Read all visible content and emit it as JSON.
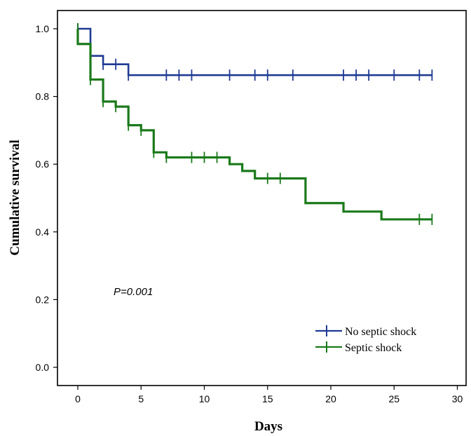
{
  "chart_data": {
    "type": "line",
    "step": true,
    "title": "",
    "xlabel": "Days",
    "ylabel": "Cumulative survival",
    "xlim": [
      -3,
      30
    ],
    "ylim": [
      -0.04,
      1.06
    ],
    "xticks": [
      0,
      5,
      10,
      15,
      20,
      25,
      30
    ],
    "yticks": [
      0.0,
      0.2,
      0.4,
      0.6,
      0.8,
      1.0
    ],
    "xtick_labels": [
      "0",
      "5",
      "10",
      "15",
      "20",
      "25",
      "30"
    ],
    "ytick_labels": [
      "0.0",
      "0.2",
      "0.4",
      "0.6",
      "0.8",
      "1.0"
    ],
    "annotation": "P=0.001",
    "legend_position": "bottom-right",
    "series": [
      {
        "name": "No septic shock",
        "color": "#1f3a93",
        "steps": [
          [
            0,
            1.0
          ],
          [
            1,
            0.92
          ],
          [
            2,
            0.895
          ],
          [
            4,
            0.863
          ],
          [
            28,
            0.863
          ]
        ],
        "censored": [
          [
            0,
            1.0
          ],
          [
            1,
            0.92
          ],
          [
            2,
            0.895
          ],
          [
            3,
            0.895
          ],
          [
            4,
            0.863
          ],
          [
            7,
            0.863
          ],
          [
            8,
            0.863
          ],
          [
            9,
            0.863
          ],
          [
            12,
            0.863
          ],
          [
            14,
            0.863
          ],
          [
            15,
            0.863
          ],
          [
            17,
            0.863
          ],
          [
            21,
            0.863
          ],
          [
            22,
            0.863
          ],
          [
            23,
            0.863
          ],
          [
            25,
            0.863
          ],
          [
            27,
            0.863
          ],
          [
            28,
            0.863
          ]
        ]
      },
      {
        "name": "Septic shock",
        "color": "#1a7a1a",
        "steps": [
          [
            0,
            0.955
          ],
          [
            1,
            0.85
          ],
          [
            2,
            0.785
          ],
          [
            3,
            0.77
          ],
          [
            4,
            0.715
          ],
          [
            5,
            0.7
          ],
          [
            6,
            0.635
          ],
          [
            7,
            0.62
          ],
          [
            12,
            0.6
          ],
          [
            13,
            0.58
          ],
          [
            14,
            0.558
          ],
          [
            18,
            0.485
          ],
          [
            21,
            0.46
          ],
          [
            24,
            0.437
          ],
          [
            28,
            0.437
          ]
        ],
        "censored": [
          [
            0,
            1.0
          ],
          [
            1,
            0.85
          ],
          [
            2,
            0.785
          ],
          [
            3,
            0.77
          ],
          [
            4,
            0.715
          ],
          [
            5,
            0.7
          ],
          [
            6,
            0.635
          ],
          [
            7,
            0.62
          ],
          [
            9,
            0.62
          ],
          [
            10,
            0.62
          ],
          [
            11,
            0.62
          ],
          [
            15,
            0.558
          ],
          [
            16,
            0.558
          ],
          [
            27,
            0.437
          ],
          [
            28,
            0.437
          ]
        ]
      }
    ]
  }
}
